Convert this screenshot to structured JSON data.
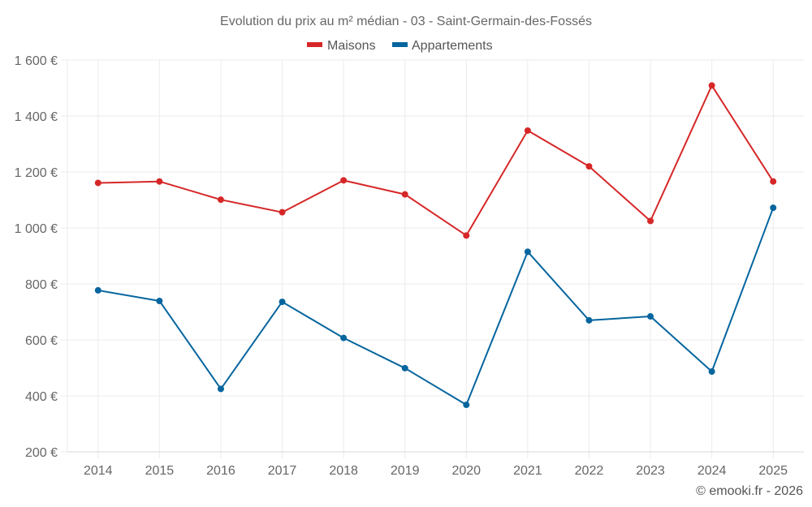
{
  "chart_data": {
    "type": "line",
    "title": "Evolution du prix au m² médian - 03 - Saint-Germain-des-Fossés",
    "xlabel": "",
    "ylabel": "",
    "categories": [
      "2014",
      "2015",
      "2016",
      "2017",
      "2018",
      "2019",
      "2020",
      "2021",
      "2022",
      "2023",
      "2024",
      "2025"
    ],
    "series": [
      {
        "name": "Maisons",
        "color": "#d62728",
        "values": [
          1161,
          1166,
          1101,
          1056,
          1170,
          1120,
          973,
          1348,
          1220,
          1025,
          1509,
          1166
        ]
      },
      {
        "name": "Appartements",
        "color": "#06659e",
        "values": [
          777,
          739,
          425,
          736,
          607,
          499,
          368,
          915,
          670,
          684,
          487,
          1072
        ]
      }
    ],
    "ylim": [
      200,
      1600
    ],
    "yticks": [
      200,
      400,
      600,
      800,
      1000,
      1200,
      1400,
      1600
    ],
    "ytick_labels": [
      "200 €",
      "400 €",
      "600 €",
      "800 €",
      "1 000 €",
      "1 200 €",
      "1 400 €",
      "1 600 €"
    ],
    "grid": true,
    "legend_position": "top-center"
  },
  "footer": "© emooki.fr - 2026"
}
